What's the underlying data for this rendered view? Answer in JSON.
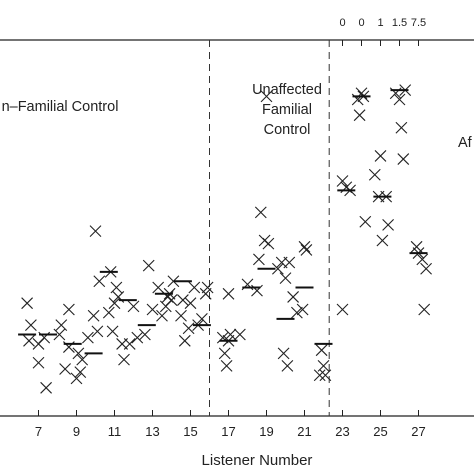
{
  "chart_data": {
    "type": "scatter",
    "title": "",
    "xlabel": "Listener Number",
    "ylabel": "",
    "xlim": [
      6.5,
      28.5
    ],
    "ylim": [
      0,
      12
    ],
    "x_ticks": [
      7,
      9,
      11,
      13,
      15,
      17,
      19,
      21,
      23,
      25,
      27
    ],
    "x_tick_labels": [
      "7",
      "9",
      "11",
      "13",
      "15",
      "17",
      "19",
      "21",
      "23",
      "25",
      "27"
    ],
    "top_axis_tick_labels": [
      "0",
      "0",
      "1",
      "1.5",
      "7.5"
    ],
    "top_axis_tick_x": [
      23,
      24,
      25,
      26,
      27
    ],
    "group_dividers_x": [
      16,
      22.3
    ],
    "groups": [
      {
        "label_lines": [
          "n–Familial Control"
        ]
      },
      {
        "label_lines": [
          "Unaffected",
          "Familial",
          "Control"
        ]
      },
      {
        "label_lines": [
          "Af"
        ]
      }
    ],
    "series": [
      {
        "marker": "x",
        "points": [
          [
            6.4,
            3.6
          ],
          [
            6.5,
            2.4
          ],
          [
            6.6,
            2.9
          ],
          [
            7.0,
            1.7
          ],
          [
            7.0,
            2.3
          ],
          [
            7.3,
            2.5
          ],
          [
            7.4,
            0.9
          ],
          [
            8.1,
            2.6
          ],
          [
            8.2,
            2.9
          ],
          [
            8.4,
            1.5
          ],
          [
            8.6,
            3.4
          ],
          [
            8.6,
            2.2
          ],
          [
            9.0,
            1.2
          ],
          [
            9.1,
            2.0
          ],
          [
            9.2,
            1.4
          ],
          [
            9.3,
            1.8
          ],
          [
            9.6,
            2.5
          ],
          [
            9.9,
            3.2
          ],
          [
            10.0,
            5.9
          ],
          [
            10.1,
            2.7
          ],
          [
            10.2,
            4.3
          ],
          [
            10.7,
            3.3
          ],
          [
            10.8,
            4.6
          ],
          [
            10.9,
            2.7
          ],
          [
            11.0,
            3.6
          ],
          [
            11.1,
            4.1
          ],
          [
            11.2,
            3.8
          ],
          [
            11.4,
            2.3
          ],
          [
            11.5,
            1.8
          ],
          [
            11.8,
            2.3
          ],
          [
            12.0,
            3.5
          ],
          [
            12.2,
            2.5
          ],
          [
            12.6,
            2.6
          ],
          [
            12.8,
            4.8
          ],
          [
            13.0,
            3.4
          ],
          [
            13.3,
            4.1
          ],
          [
            13.5,
            3.2
          ],
          [
            13.7,
            3.5
          ],
          [
            13.8,
            3.8
          ],
          [
            13.9,
            3.9
          ],
          [
            14.0,
            3.7
          ],
          [
            14.1,
            4.3
          ],
          [
            14.5,
            3.2
          ],
          [
            14.6,
            3.7
          ],
          [
            14.7,
            2.4
          ],
          [
            14.9,
            2.8
          ],
          [
            15.0,
            3.6
          ],
          [
            15.2,
            4.1
          ],
          [
            15.4,
            2.9
          ],
          [
            15.6,
            3.1
          ],
          [
            15.8,
            3.9
          ],
          [
            15.9,
            4.1
          ],
          [
            16.7,
            2.5
          ],
          [
            16.8,
            2.0
          ],
          [
            16.9,
            1.6
          ],
          [
            17.0,
            2.4
          ],
          [
            17.1,
            2.6
          ],
          [
            17.0,
            3.9
          ],
          [
            17.6,
            2.6
          ],
          [
            18.0,
            4.2
          ],
          [
            18.5,
            4.0
          ],
          [
            18.6,
            5.0
          ],
          [
            18.7,
            6.5
          ],
          [
            18.9,
            5.6
          ],
          [
            19.0,
            10.2
          ],
          [
            19.1,
            5.5
          ],
          [
            19.6,
            4.7
          ],
          [
            19.8,
            4.9
          ],
          [
            19.9,
            2.0
          ],
          [
            20.0,
            4.4
          ],
          [
            20.1,
            1.6
          ],
          [
            20.2,
            4.9
          ],
          [
            20.4,
            3.8
          ],
          [
            20.6,
            3.3
          ],
          [
            20.9,
            3.4
          ],
          [
            21.0,
            5.4
          ],
          [
            21.1,
            5.3
          ],
          [
            21.8,
            1.3
          ],
          [
            21.9,
            2.1
          ],
          [
            22.0,
            1.6
          ],
          [
            22.1,
            1.3
          ],
          [
            23.0,
            3.4
          ],
          [
            23.0,
            7.5
          ],
          [
            23.2,
            7.3
          ],
          [
            23.4,
            7.2
          ],
          [
            23.8,
            10.1
          ],
          [
            23.9,
            9.6
          ],
          [
            24.0,
            10.3
          ],
          [
            24.1,
            10.2
          ],
          [
            24.2,
            6.2
          ],
          [
            24.7,
            7.7
          ],
          [
            24.9,
            7.0
          ],
          [
            25.0,
            8.3
          ],
          [
            25.1,
            5.6
          ],
          [
            25.3,
            7.0
          ],
          [
            25.4,
            6.1
          ],
          [
            25.8,
            10.3
          ],
          [
            26.0,
            10.1
          ],
          [
            26.1,
            9.2
          ],
          [
            26.2,
            8.2
          ],
          [
            26.3,
            10.4
          ],
          [
            26.9,
            5.4
          ],
          [
            27.0,
            5.2
          ],
          [
            27.2,
            5.0
          ],
          [
            27.3,
            3.4
          ],
          [
            27.4,
            4.7
          ]
        ]
      }
    ],
    "medians": [
      [
        6.4,
        2.6
      ],
      [
        7.5,
        2.6
      ],
      [
        8.8,
        2.3
      ],
      [
        9.9,
        2.0
      ],
      [
        10.7,
        4.6
      ],
      [
        11.7,
        3.7
      ],
      [
        12.7,
        2.9
      ],
      [
        13.6,
        3.9
      ],
      [
        14.6,
        4.3
      ],
      [
        15.6,
        2.9
      ],
      [
        17.0,
        2.4
      ],
      [
        18.2,
        4.1
      ],
      [
        19.0,
        4.7
      ],
      [
        20.0,
        3.1
      ],
      [
        21.0,
        4.1
      ],
      [
        22.0,
        2.3
      ],
      [
        23.2,
        7.2
      ],
      [
        24.0,
        10.2
      ],
      [
        25.1,
        7.0
      ],
      [
        26.0,
        10.4
      ],
      [
        27.0,
        5.2
      ]
    ]
  }
}
